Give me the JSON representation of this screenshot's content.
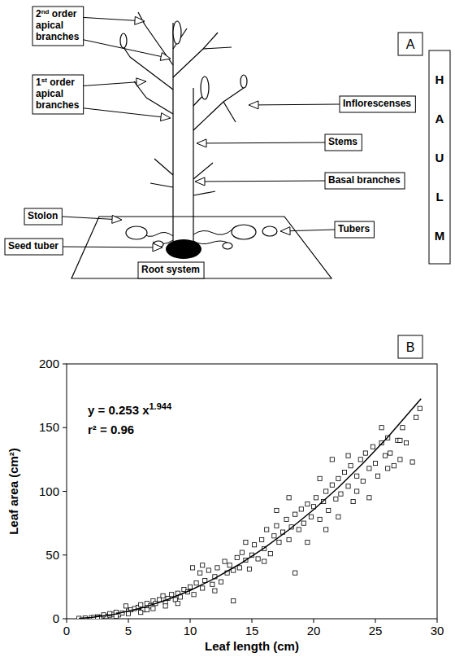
{
  "diagram": {
    "panel_label": "A",
    "side_label": "HAULM",
    "labels": [
      {
        "lines": [
          "2nd order",
          "apical",
          "branches"
        ]
      },
      {
        "lines": [
          "1st order",
          "apical",
          "branches"
        ]
      },
      {
        "lines": [
          "Inflorescenses"
        ]
      },
      {
        "lines": [
          "Stems"
        ]
      },
      {
        "lines": [
          "Basal branches"
        ]
      },
      {
        "lines": [
          "Stolon"
        ]
      },
      {
        "lines": [
          "Tubers"
        ]
      },
      {
        "lines": [
          "Seed tuber"
        ]
      },
      {
        "lines": [
          "Root system"
        ]
      }
    ]
  },
  "chart_data": {
    "type": "scatter",
    "panel_label": "B",
    "x_label": "Leaf length (cm)",
    "y_label": "Leaf  area (cm²)",
    "annotations": [
      {
        "text": "y = 0.253 x",
        "superscript": "1.944"
      },
      {
        "text": "r² = 0.96"
      }
    ],
    "xlim": [
      0,
      30
    ],
    "xticks": [
      0,
      5,
      10,
      15,
      20,
      25,
      30
    ],
    "ylim": [
      0,
      200
    ],
    "yticks": [
      0,
      50,
      100,
      150,
      200
    ],
    "grid": false,
    "series": [
      {
        "type": "scatter",
        "marker": "square",
        "color": "#000000",
        "x": [
          1.0,
          1.5,
          2.0,
          2.2,
          2.5,
          2.8,
          3.0,
          3.2,
          3.5,
          3.8,
          4.0,
          4.2,
          4.5,
          4.8,
          5.0,
          5.2,
          5.5,
          5.8,
          6.0,
          6.2,
          6.5,
          6.8,
          7.0,
          7.2,
          7.5,
          7.8,
          8.0,
          8.2,
          8.5,
          8.8,
          9.0,
          9.2,
          9.5,
          9.8,
          10.0,
          10.2,
          10.3,
          10.5,
          10.8,
          11.0,
          11.2,
          11.5,
          11.8,
          12.0,
          12.2,
          12.5,
          12.8,
          13.0,
          13.2,
          13.5,
          13.5,
          13.8,
          14.0,
          14.2,
          14.5,
          14.8,
          15.0,
          15.2,
          15.5,
          15.8,
          16.0,
          16.2,
          16.5,
          16.8,
          17.0,
          17.2,
          17.5,
          17.8,
          18.0,
          18.2,
          18.5,
          18.5,
          18.8,
          19.0,
          19.2,
          19.5,
          19.8,
          20.0,
          20.2,
          20.5,
          20.8,
          21.0,
          21.2,
          21.5,
          21.8,
          22.0,
          22.2,
          22.5,
          22.8,
          23.0,
          23.2,
          23.5,
          23.8,
          24.0,
          24.2,
          24.5,
          24.8,
          25.0,
          25.2,
          25.5,
          25.8,
          26.0,
          26.2,
          26.5,
          26.8,
          27.0,
          27.2,
          27.5,
          28.0,
          28.3,
          28.6,
          19.5,
          20.5,
          22.0,
          23.5,
          24.5,
          21.0,
          17.0,
          16.0,
          14.5,
          12.0,
          11.0,
          26.0,
          25.5,
          27.0,
          18.0,
          21.5,
          22.8,
          3.0,
          4.0,
          5.0,
          6.0,
          7.0,
          8.0,
          9.0,
          2.5,
          3.5,
          6.5
        ],
        "values": [
          0.3,
          0.5,
          0.8,
          1.0,
          1.5,
          1.2,
          2.0,
          1.8,
          2.8,
          3.5,
          5,
          3,
          4.5,
          10,
          6,
          7,
          8,
          9,
          11,
          7,
          12,
          10,
          14,
          12,
          15,
          18,
          13,
          16,
          19,
          15,
          20,
          17,
          23,
          21,
          25,
          40,
          19,
          28,
          36,
          24,
          30,
          38,
          27,
          33,
          40,
          29,
          45,
          36,
          42,
          14,
          38,
          48,
          40,
          52,
          46,
          39,
          50,
          58,
          47,
          62,
          55,
          70,
          51,
          65,
          73,
          60,
          68,
          78,
          62,
          72,
          36,
          82,
          70,
          86,
          75,
          90,
          80,
          88,
          95,
          78,
          92,
          100,
          85,
          105,
          94,
          110,
          98,
          115,
          104,
          120,
          92,
          112,
          125,
          108,
          130,
          118,
          135,
          122,
          112,
          138,
          128,
          142,
          130,
          120,
          140,
          125,
          150,
          138,
          123,
          158,
          165,
          60,
          110,
          80,
          100,
          95,
          70,
          85,
          45,
          60,
          22,
          42,
          118,
          150,
          140,
          95,
          125,
          128,
          3,
          2,
          4,
          5,
          8,
          10,
          12,
          0.5,
          4,
          7
        ]
      },
      {
        "type": "line",
        "line_style": "solid",
        "color": "#000000",
        "x": [
          1,
          2,
          4,
          6,
          8,
          10,
          12,
          14,
          16,
          18,
          20,
          22,
          24,
          26,
          28.7
        ],
        "values": [
          0.25,
          0.97,
          3.75,
          8.24,
          14.4,
          22.2,
          31.7,
          42.8,
          55.5,
          69.8,
          85.6,
          103.0,
          122.0,
          142.5,
          172.7
        ]
      }
    ]
  }
}
